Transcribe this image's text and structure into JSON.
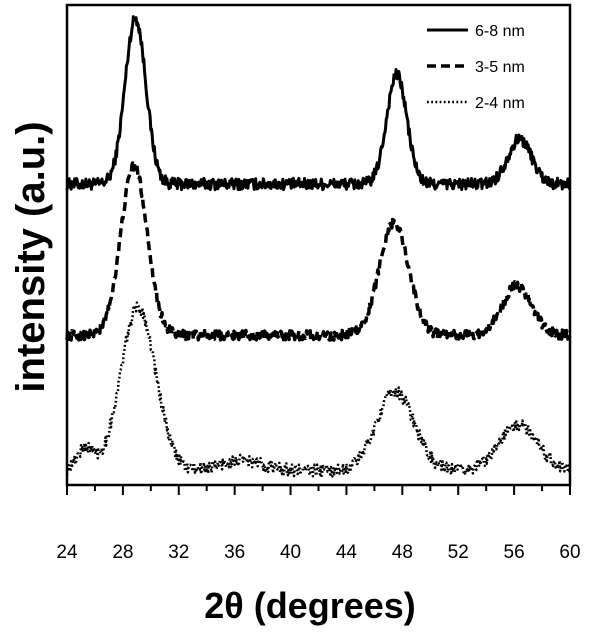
{
  "chart_data": {
    "type": "line",
    "xlabel": "2θ (degrees)",
    "ylabel": "intensity (a.u.)",
    "xlim": [
      24,
      60
    ],
    "ylim": [
      0,
      1
    ],
    "x_ticks": [
      "24",
      "28",
      "32",
      "36",
      "40",
      "44",
      "48",
      "52",
      "56",
      "60"
    ],
    "y_ticks": [],
    "grid": false,
    "legend_position": "top-right",
    "series": [
      {
        "name": "6-8 nm",
        "style": "solid",
        "offset": 0.627,
        "peaks": [
          {
            "center": 28.9,
            "height": 0.345,
            "width": 0.75
          },
          {
            "center": 47.6,
            "height": 0.228,
            "width": 0.72
          },
          {
            "center": 56.4,
            "height": 0.094,
            "width": 0.85
          }
        ],
        "noise": 0.012
      },
      {
        "name": "3-5 nm",
        "style": "dashed",
        "offset": 0.312,
        "peaks": [
          {
            "center": 28.8,
            "height": 0.352,
            "width": 0.95
          },
          {
            "center": 47.4,
            "height": 0.235,
            "width": 1.05
          },
          {
            "center": 56.2,
            "height": 0.103,
            "width": 1.05
          }
        ],
        "noise": 0.01
      },
      {
        "name": "2-4 nm",
        "style": "dotted",
        "offset": 0.03,
        "peaks": [
          {
            "center": 25.3,
            "height": 0.045,
            "width": 0.6
          },
          {
            "center": 29.1,
            "height": 0.34,
            "width": 1.25
          },
          {
            "center": 36.5,
            "height": 0.02,
            "width": 1.6
          },
          {
            "center": 47.5,
            "height": 0.165,
            "width": 1.35
          },
          {
            "center": 56.3,
            "height": 0.095,
            "width": 1.4
          }
        ],
        "noise": 0.013
      }
    ]
  },
  "colors": {
    "line": "#000000",
    "axis": "#000000",
    "background": "#ffffff"
  }
}
